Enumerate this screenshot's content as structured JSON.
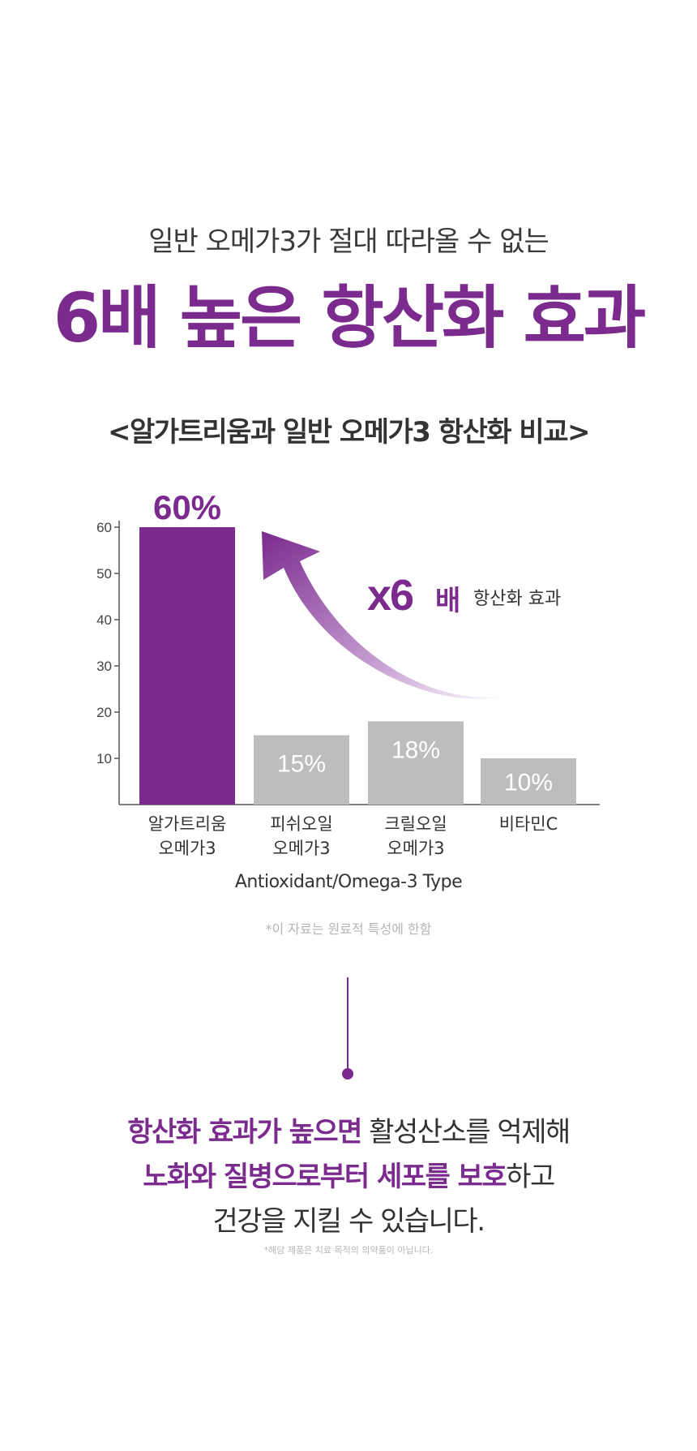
{
  "header": {
    "subtitle": "일반 오메가3가 절대 따라올 수 없는",
    "headline": "6배 높은 항산화 효과"
  },
  "chart_data": {
    "type": "bar",
    "title": "<알가트리움과 일반 오메가3 항산화 비교>",
    "xlabel": "Antioxidant/Omega-3 Type",
    "ylabel": "",
    "ylim": [
      0,
      60
    ],
    "yticks": [
      10,
      20,
      30,
      40,
      50,
      60
    ],
    "categories": [
      [
        "알가트리움",
        "오메가3"
      ],
      [
        "피쉬오일",
        "오메가3"
      ],
      [
        "크릴오일",
        "오메가3"
      ],
      [
        "비타민C"
      ]
    ],
    "values": [
      60,
      15,
      18,
      10
    ],
    "value_labels": [
      "60%",
      "15%",
      "18%",
      "10%"
    ],
    "bar_colors": [
      "#7b2a8e",
      "#bdbdbd",
      "#bdbdbd",
      "#bdbdbd"
    ],
    "annotation": {
      "multiplier": "x6",
      "unit": "배",
      "text": "항산화 효과"
    },
    "grid": false
  },
  "footnote_chart": "*이 자료는 원료적 특성에 한함",
  "message": {
    "line1_highlight": "항산화 효과가 높으면",
    "line1_rest": " 활성산소를 억제해",
    "line2_highlight": "노화와 질병으로부터 세포를 보호",
    "line2_rest": "하고",
    "line3": "건강을 지킬 수 있습니다."
  },
  "footnote_bottom": "*해당 제품은 치료 목적의 의약품이 아닙니다.",
  "colors": {
    "accent": "#7b2a8e",
    "bar_gray": "#bdbdbd",
    "text_dark": "#333333",
    "text_muted": "#b5b5b5"
  }
}
